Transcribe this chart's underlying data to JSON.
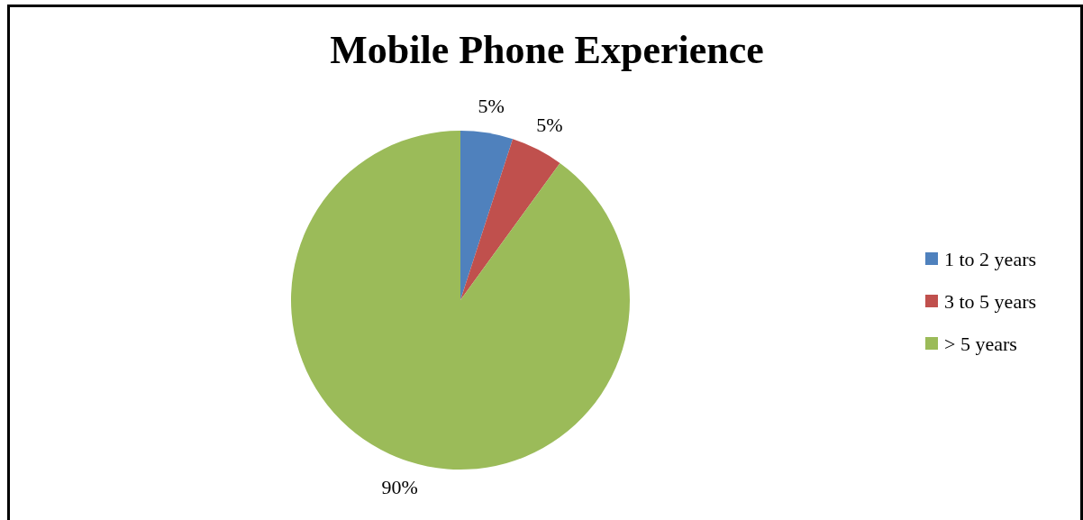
{
  "chart_data": {
    "type": "pie",
    "title": "Mobile Phone Experience",
    "categories": [
      "1 to 2 years",
      "3 to 5 years",
      "> 5 years"
    ],
    "values": [
      5,
      5,
      90
    ],
    "colors": [
      "#4f81bd",
      "#c0504d",
      "#9bbb59"
    ],
    "value_labels": [
      "5%",
      "5%",
      "90%"
    ],
    "legend": "right"
  }
}
